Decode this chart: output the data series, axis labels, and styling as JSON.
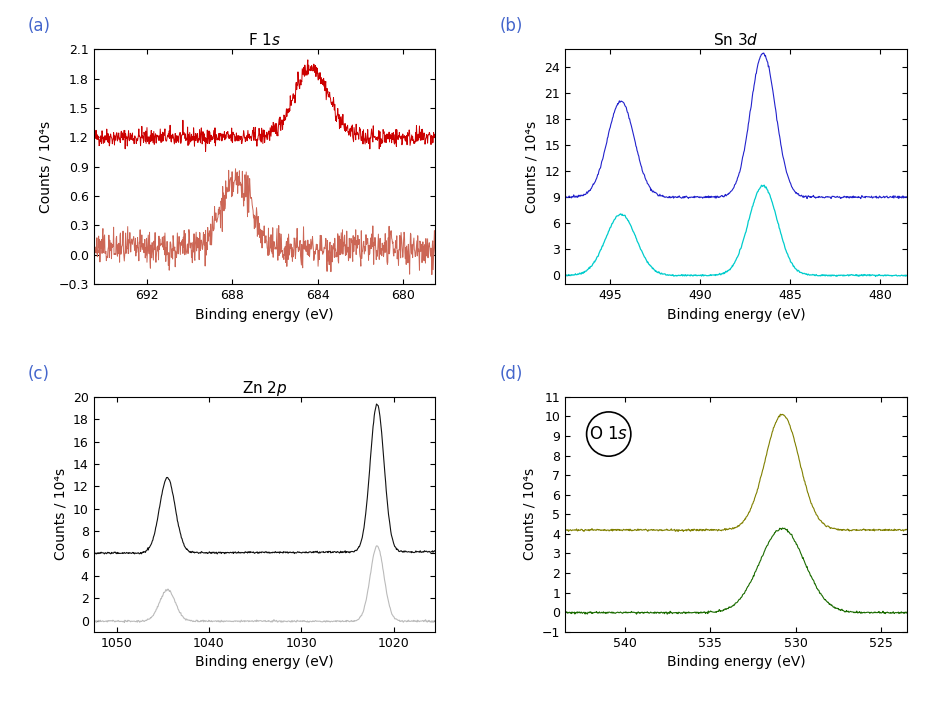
{
  "panels": {
    "a": {
      "xlabel": "Binding energy (eV)",
      "ylabel": "Counts / 10⁴s",
      "xlim": [
        678.5,
        694.5
      ],
      "xticks": [
        692,
        688,
        684,
        680
      ],
      "ylim": [
        -0.3,
        2.1
      ],
      "yticks": [
        -0.3,
        0.0,
        0.3,
        0.6,
        0.9,
        1.2,
        1.5,
        1.8,
        2.1
      ],
      "label": "(a)"
    },
    "b": {
      "xlabel": "Binding energy (eV)",
      "ylabel": "Counts / 10⁴s",
      "xlim": [
        478.5,
        497.5
      ],
      "xticks": [
        495,
        490,
        485,
        480
      ],
      "ylim": [
        -1,
        26
      ],
      "yticks": [
        0,
        3,
        6,
        9,
        12,
        15,
        18,
        21,
        24
      ],
      "label": "(b)"
    },
    "c": {
      "xlabel": "Binding energy (eV)",
      "ylabel": "Counts / 10⁴s",
      "xlim": [
        1015.5,
        1052.5
      ],
      "xticks": [
        1050,
        1040,
        1030,
        1020
      ],
      "ylim": [
        -1,
        20
      ],
      "yticks": [
        0,
        2,
        4,
        6,
        8,
        10,
        12,
        14,
        16,
        18,
        20
      ],
      "label": "(c)"
    },
    "d": {
      "xlabel": "Binding energy (eV)",
      "ylabel": "Counts / 10⁴s",
      "xlim": [
        523.5,
        543.5
      ],
      "xticks": [
        540,
        535,
        530,
        525
      ],
      "ylim": [
        -1,
        11
      ],
      "yticks": [
        -1,
        0,
        1,
        2,
        3,
        4,
        5,
        6,
        7,
        8,
        9,
        10,
        11
      ],
      "label": "(d)"
    }
  },
  "colors": {
    "a_surface": "#CC0000",
    "a_bulk": "#CC6655",
    "b_surface": "#2222CC",
    "b_bulk": "#00CCCC",
    "c_surface": "#111111",
    "c_bulk": "#BBBBBB",
    "d_surface": "#808000",
    "d_bulk": "#1A6B00"
  }
}
